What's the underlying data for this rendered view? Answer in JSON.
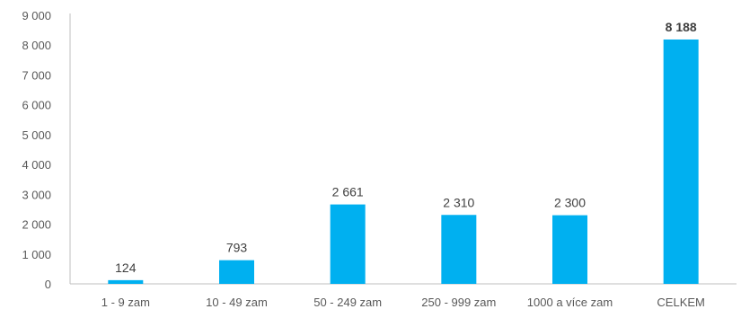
{
  "chart_data": {
    "type": "bar",
    "categories": [
      "1 - 9 zam",
      "10 - 49 zam",
      "50 - 249 zam",
      "250 - 999 zam",
      "1000 a více zam",
      "CELKEM"
    ],
    "values": [
      124,
      793,
      2661,
      2310,
      2300,
      8188
    ],
    "data_labels": [
      "124",
      "793",
      "2 661",
      "2 310",
      "2 300",
      "8 188"
    ],
    "bold_labels": [
      false,
      false,
      false,
      false,
      false,
      true
    ],
    "y_ticks": [
      0,
      1000,
      2000,
      3000,
      4000,
      5000,
      6000,
      7000,
      8000,
      9000
    ],
    "y_tick_labels": [
      "0",
      "1 000",
      "2 000",
      "3 000",
      "4 000",
      "5 000",
      "6 000",
      "7 000",
      "8 000",
      "9 000"
    ],
    "ylim": [
      0,
      9000
    ],
    "title": "",
    "xlabel": "",
    "ylabel": "",
    "grid": false,
    "legend": "none",
    "colors": {
      "bar": "#00B0F0",
      "axis": "#BFBFBF",
      "text": "#595959",
      "label": "#404040"
    }
  }
}
